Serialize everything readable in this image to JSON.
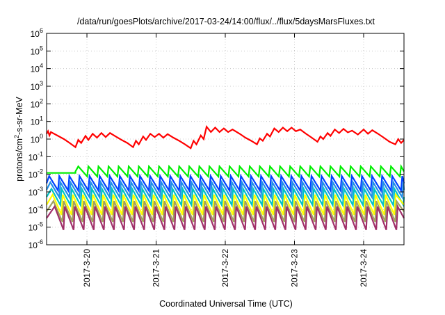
{
  "chart_data": {
    "type": "line",
    "title": "/data/run/goesPlots/archive/2017-03-24/14:00/flux/../flux/5daysMarsFluxes.txt",
    "xlabel": "Coordinated Universal Time (UTC)",
    "ylabel": {
      "pre": "protons/cm",
      "sup": "2",
      "post": "-s-sr-MeV"
    },
    "yscale": "log",
    "ylim_exp": [
      -6,
      6
    ],
    "ytick_exponents": [
      -6,
      -5,
      -4,
      -3,
      -2,
      -1,
      0,
      1,
      2,
      3,
      4,
      5,
      6
    ],
    "ytick_base": "10",
    "xlim": [
      "2017-03-19 10:00",
      "2017-03-24 14:00"
    ],
    "xticks": [
      {
        "label": "2017-3-20",
        "t": "2017-03-20 00:00"
      },
      {
        "label": "2017-3-21",
        "t": "2017-03-21 00:00"
      },
      {
        "label": "2017-3-22",
        "t": "2017-03-22 00:00"
      },
      {
        "label": "2017-3-23",
        "t": "2017-03-23 00:00"
      },
      {
        "label": "2017-3-24",
        "t": "2017-03-24 00:00"
      }
    ],
    "grid": true,
    "series": [
      {
        "color": "#ff0000",
        "points": [
          [
            "2017-03-19 10:00",
            2.0
          ],
          [
            "2017-03-19 10:30",
            2.8
          ],
          [
            "2017-03-19 11:00",
            1.6
          ],
          [
            "2017-03-19 11:30",
            2.5
          ],
          [
            "2017-03-19 14:00",
            1.5
          ],
          [
            "2017-03-19 16:00",
            1.0
          ],
          [
            "2017-03-19 18:00",
            0.6
          ],
          [
            "2017-03-19 20:00",
            0.35
          ],
          [
            "2017-03-19 21:00",
            0.9
          ],
          [
            "2017-03-19 22:00",
            0.6
          ],
          [
            "2017-03-19 23:30",
            1.5
          ],
          [
            "2017-03-20 00:30",
            0.9
          ],
          [
            "2017-03-20 02:00",
            2.0
          ],
          [
            "2017-03-20 03:30",
            1.2
          ],
          [
            "2017-03-20 05:00",
            2.2
          ],
          [
            "2017-03-20 06:30",
            1.3
          ],
          [
            "2017-03-20 08:00",
            2.2
          ],
          [
            "2017-03-20 10:00",
            1.4
          ],
          [
            "2017-03-20 12:00",
            0.9
          ],
          [
            "2017-03-20 14:00",
            0.6
          ],
          [
            "2017-03-20 16:00",
            0.35
          ],
          [
            "2017-03-20 17:00",
            0.8
          ],
          [
            "2017-03-20 18:00",
            0.5
          ],
          [
            "2017-03-20 19:30",
            1.4
          ],
          [
            "2017-03-20 20:30",
            0.9
          ],
          [
            "2017-03-20 22:00",
            2.0
          ],
          [
            "2017-03-20 23:30",
            1.3
          ],
          [
            "2017-03-21 01:00",
            2.0
          ],
          [
            "2017-03-21 02:30",
            1.2
          ],
          [
            "2017-03-21 04:00",
            1.9
          ],
          [
            "2017-03-21 06:00",
            1.2
          ],
          [
            "2017-03-21 08:00",
            0.8
          ],
          [
            "2017-03-21 10:00",
            0.5
          ],
          [
            "2017-03-21 12:00",
            0.3
          ],
          [
            "2017-03-21 13:00",
            0.8
          ],
          [
            "2017-03-21 14:00",
            0.5
          ],
          [
            "2017-03-21 15:30",
            1.6
          ],
          [
            "2017-03-21 16:30",
            1.0
          ],
          [
            "2017-03-21 17:30",
            5.0
          ],
          [
            "2017-03-21 19:00",
            2.5
          ],
          [
            "2017-03-21 20:30",
            4.5
          ],
          [
            "2017-03-21 22:00",
            2.5
          ],
          [
            "2017-03-21 23:30",
            4.0
          ],
          [
            "2017-03-22 01:00",
            2.5
          ],
          [
            "2017-03-22 02:30",
            3.5
          ],
          [
            "2017-03-22 05:00",
            2.0
          ],
          [
            "2017-03-22 07:00",
            1.2
          ],
          [
            "2017-03-22 09:00",
            0.8
          ],
          [
            "2017-03-22 11:00",
            0.5
          ],
          [
            "2017-03-22 12:00",
            1.1
          ],
          [
            "2017-03-22 13:00",
            0.8
          ],
          [
            "2017-03-22 14:30",
            2.0
          ],
          [
            "2017-03-22 15:30",
            1.4
          ],
          [
            "2017-03-22 17:00",
            4.0
          ],
          [
            "2017-03-22 18:30",
            2.5
          ],
          [
            "2017-03-22 20:00",
            4.5
          ],
          [
            "2017-03-22 21:30",
            2.8
          ],
          [
            "2017-03-22 23:00",
            4.5
          ],
          [
            "2017-03-23 00:30",
            2.8
          ],
          [
            "2017-03-23 02:00",
            3.5
          ],
          [
            "2017-03-23 04:00",
            2.0
          ],
          [
            "2017-03-23 06:00",
            1.2
          ],
          [
            "2017-03-23 08:00",
            0.7
          ],
          [
            "2017-03-23 09:00",
            1.4
          ],
          [
            "2017-03-23 10:00",
            1.0
          ],
          [
            "2017-03-23 11:30",
            2.2
          ],
          [
            "2017-03-23 12:30",
            1.5
          ],
          [
            "2017-03-23 14:00",
            3.5
          ],
          [
            "2017-03-23 15:30",
            2.2
          ],
          [
            "2017-03-23 17:00",
            3.8
          ],
          [
            "2017-03-23 18:30",
            2.4
          ],
          [
            "2017-03-23 20:00",
            3.0
          ],
          [
            "2017-03-23 22:00",
            1.8
          ],
          [
            "2017-03-24 00:00",
            3.5
          ],
          [
            "2017-03-24 01:30",
            2.0
          ],
          [
            "2017-03-24 03:00",
            3.2
          ],
          [
            "2017-03-24 05:00",
            2.0
          ],
          [
            "2017-03-24 07:00",
            1.2
          ],
          [
            "2017-03-24 09:00",
            0.7
          ],
          [
            "2017-03-24 11:00",
            0.5
          ],
          [
            "2017-03-24 12:00",
            1.0
          ],
          [
            "2017-03-24 13:00",
            0.6
          ],
          [
            "2017-03-24 14:00",
            0.9
          ]
        ]
      },
      {
        "color": "#00ee00",
        "sawtooth": {
          "period_h": 3.5,
          "phase_h": 0.5,
          "start": "2017-03-19 20:00",
          "hi": 0.028,
          "lo": 0.0075,
          "pre_start_hi": 0.012
        }
      },
      {
        "color": "#0044ff",
        "sawtooth": {
          "period_h": 3.5,
          "phase_h": 0.9,
          "start": "2017-03-19 10:00",
          "hi": 0.008,
          "lo": 0.0012
        }
      },
      {
        "color": "#1f8fe8",
        "sawtooth": {
          "period_h": 3.5,
          "phase_h": 1.3,
          "start": "2017-03-19 10:00",
          "hi": 0.0035,
          "lo": 0.0005
        }
      },
      {
        "color": "#00c4c4",
        "sawtooth": {
          "period_h": 3.5,
          "phase_h": 1.7,
          "start": "2017-03-19 10:00",
          "hi": 0.0015,
          "lo": 0.00018
        }
      },
      {
        "color": "#ffff00",
        "sawtooth": {
          "period_h": 3.5,
          "phase_h": 2.1,
          "start": "2017-03-19 10:00",
          "hi": 0.0007,
          "lo": 5e-05
        }
      },
      {
        "color": "#a0a060",
        "sawtooth": {
          "period_h": 3.5,
          "phase_h": 2.4,
          "start": "2017-03-19 10:00",
          "hi": 0.0003,
          "lo": 2e-05
        }
      },
      {
        "color": "#a0306a",
        "sawtooth": {
          "period_h": 3.5,
          "phase_h": 2.8,
          "start": "2017-03-19 10:00",
          "hi": 0.00015,
          "lo": 7e-06
        }
      }
    ]
  }
}
